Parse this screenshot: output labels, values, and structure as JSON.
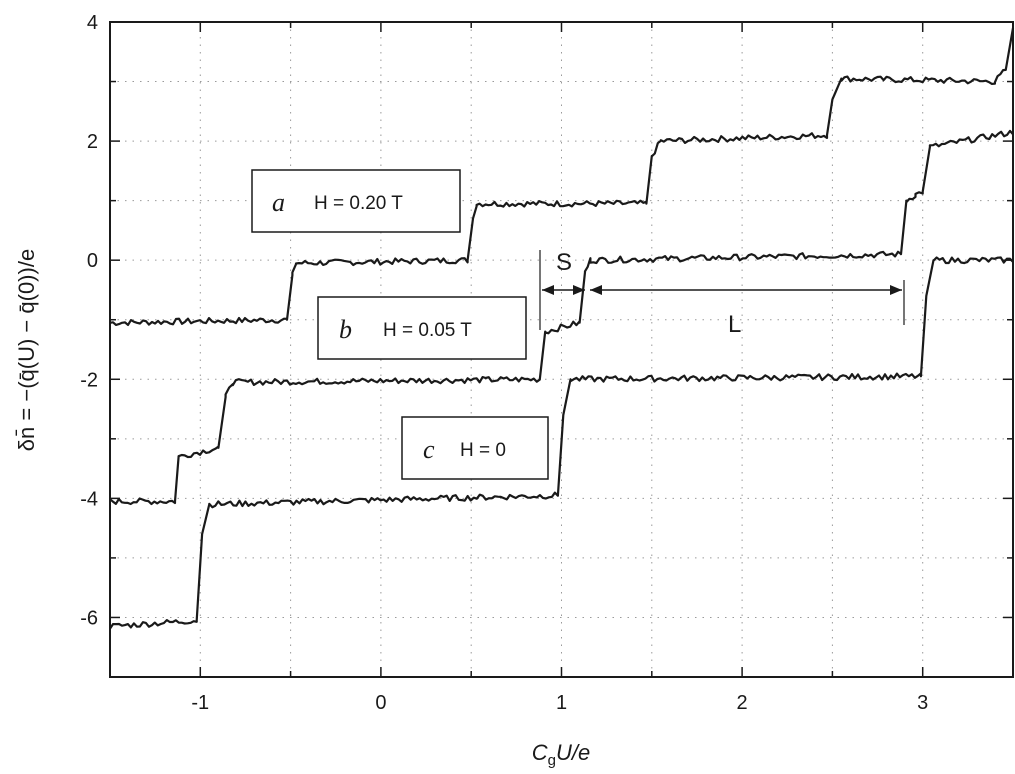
{
  "chart_data": {
    "type": "line",
    "xlabel": "C_gU/e",
    "xlabel_main": "C",
    "xlabel_sub": "g",
    "xlabel_rest": "U/e",
    "ylabel": "δn̄ = −(q̄(U) − q̄(0))/e",
    "xlim": [
      -1.5,
      3.5
    ],
    "ylim": [
      -7,
      4
    ],
    "xticks": [
      -1,
      0,
      1,
      2,
      3
    ],
    "yticks": [
      -6,
      -4,
      -2,
      0,
      2,
      4
    ],
    "grid": "dotted",
    "series": [
      {
        "label_letter": "a",
        "label_text": "H = 0.20 T",
        "noise": 0.05,
        "points": [
          [
            -1.5,
            -1.05
          ],
          [
            -0.52,
            -1.0
          ],
          [
            -0.49,
            -0.25
          ],
          [
            -0.47,
            -0.05
          ],
          [
            0.48,
            0.0
          ],
          [
            0.51,
            0.7
          ],
          [
            0.53,
            0.95
          ],
          [
            1.47,
            0.95
          ],
          [
            1.5,
            1.75
          ],
          [
            1.55,
            2.0
          ],
          [
            2.47,
            2.1
          ],
          [
            2.5,
            2.7
          ],
          [
            2.55,
            3.05
          ],
          [
            3.4,
            3.0
          ],
          [
            3.46,
            3.2
          ],
          [
            3.5,
            3.9
          ]
        ]
      },
      {
        "label_letter": "b",
        "label_text": "H = 0.05 T",
        "noise": 0.05,
        "points": [
          [
            -1.5,
            -4.05
          ],
          [
            -1.14,
            -4.05
          ],
          [
            -1.12,
            -3.3
          ],
          [
            -0.9,
            -3.15
          ],
          [
            -0.86,
            -2.3
          ],
          [
            -0.82,
            -2.05
          ],
          [
            0.88,
            -2.0
          ],
          [
            0.91,
            -1.2
          ],
          [
            1.1,
            -1.05
          ],
          [
            1.13,
            -0.2
          ],
          [
            1.16,
            0.0
          ],
          [
            2.88,
            0.1
          ],
          [
            2.91,
            1.0
          ],
          [
            2.96,
            1.1
          ],
          [
            3.0,
            1.15
          ],
          [
            3.04,
            1.9
          ],
          [
            3.5,
            2.15
          ]
        ]
      },
      {
        "label_letter": "c",
        "label_text": "H = 0",
        "noise": 0.05,
        "points": [
          [
            -1.5,
            -6.15
          ],
          [
            -1.02,
            -6.05
          ],
          [
            -0.99,
            -4.6
          ],
          [
            -0.95,
            -4.1
          ],
          [
            0.98,
            -3.95
          ],
          [
            1.01,
            -2.6
          ],
          [
            1.05,
            -2.0
          ],
          [
            2.99,
            -1.95
          ],
          [
            3.02,
            -0.6
          ],
          [
            3.06,
            0.0
          ],
          [
            3.5,
            0.0
          ]
        ]
      }
    ],
    "annotations": {
      "short_label": "S",
      "long_label": "L"
    }
  }
}
